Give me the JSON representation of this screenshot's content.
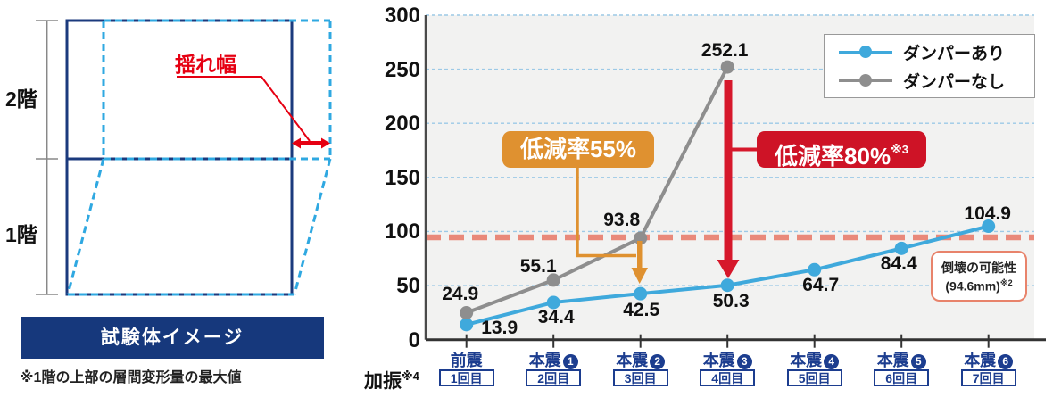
{
  "diagram": {
    "floors": [
      "2階",
      "1階"
    ],
    "sway_label": "揺れ幅",
    "caption": "試験体イメージ",
    "footnote": "※1階の上部の層間変形量の最大値"
  },
  "chart_data": {
    "type": "line",
    "title": "",
    "x_axis_label": "加振",
    "x_axis_note": "※4",
    "ylim": [
      0,
      300
    ],
    "yticks": [
      0,
      50,
      100,
      150,
      200,
      250,
      300
    ],
    "grid": true,
    "legend_position": "top-right",
    "categories": [
      {
        "label": "前震",
        "circled": "",
        "trial": "1回目"
      },
      {
        "label": "本震",
        "circled": "1",
        "trial": "2回目"
      },
      {
        "label": "本震",
        "circled": "2",
        "trial": "3回目"
      },
      {
        "label": "本震",
        "circled": "3",
        "trial": "4回目"
      },
      {
        "label": "本震",
        "circled": "4",
        "trial": "5回目"
      },
      {
        "label": "本震",
        "circled": "5",
        "trial": "6回目"
      },
      {
        "label": "本震",
        "circled": "6",
        "trial": "7回目"
      }
    ],
    "series": [
      {
        "name": "ダンパーあり",
        "color": "#3fa9dc",
        "values": [
          13.9,
          34.4,
          42.5,
          50.3,
          64.7,
          84.4,
          104.9
        ]
      },
      {
        "name": "ダンパーなし",
        "color": "#8e8e8e",
        "values": [
          24.9,
          55.1,
          93.8,
          252.1
        ]
      }
    ],
    "threshold": {
      "value": 94.6,
      "label": "倒壊の可能性",
      "sublabel": "(94.6mm)",
      "note": "※2",
      "color": "#e9897a"
    },
    "annotations": [
      {
        "text": "低減率55%",
        "note": "",
        "color": "#df9130"
      },
      {
        "text": "低減率80%",
        "note": "※3",
        "color": "#ce1326"
      }
    ]
  }
}
